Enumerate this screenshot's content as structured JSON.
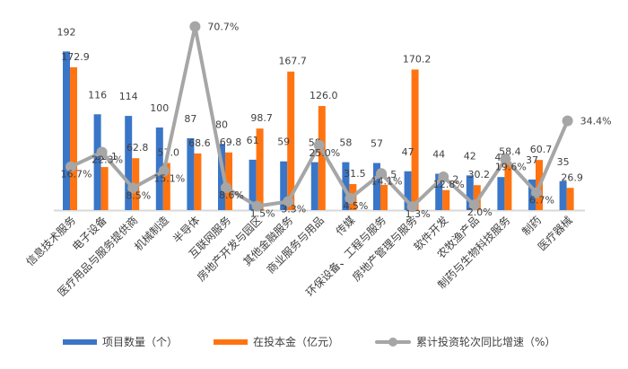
{
  "chart_data": {
    "type": "bar",
    "title": "",
    "xlabel": "",
    "ylabel": "",
    "categories": [
      "信息技术服务",
      "电子设备",
      "医疗用品与服务提供商",
      "机械制造",
      "半导体",
      "互联网服务",
      "房地产开发与园区",
      "其他金融服务",
      "商业服务与用品",
      "传媒",
      "环保设备、工程与服务",
      "房地产管理与服务",
      "软件开发",
      "农牧渔产品",
      "制药与生物科技服务",
      "制药",
      "医疗器械"
    ],
    "series": [
      {
        "name": "项目数量（个）",
        "type": "bar",
        "color": "#4472c4",
        "values": [
          192,
          116,
          114,
          100,
          87,
          80,
          61,
          59,
          58,
          58,
          57,
          47,
          44,
          42,
          40,
          37,
          35
        ]
      },
      {
        "name": "在投本金（亿元）",
        "type": "bar",
        "color": "#ff7f0e",
        "values": [
          172.9,
          52.1,
          62.8,
          57.0,
          68.6,
          69.8,
          98.7,
          167.7,
          126.0,
          31.5,
          30.5,
          170.2,
          24.2,
          30.2,
          58.4,
          60.7,
          26.9
        ]
      },
      {
        "name": "累计投资轮次同比增速（%）",
        "type": "line",
        "color": "#a6a6a6",
        "values": [
          16.7,
          22.3,
          8.5,
          15.1,
          70.7,
          8.6,
          1.5,
          3.3,
          25.0,
          4.5,
          14.1,
          1.3,
          12.8,
          2.0,
          19.6,
          6.7,
          34.4
        ]
      }
    ],
    "grid": false,
    "legend_position": "bottom"
  },
  "legend": {
    "items": [
      {
        "label": "项目数量（个）",
        "color": "#3a76c8"
      },
      {
        "label": "在投本金（亿元）",
        "color": "#ff7411"
      },
      {
        "label": "累计投资轮次同比增速（%）",
        "color": "#a6a6a6"
      }
    ]
  }
}
